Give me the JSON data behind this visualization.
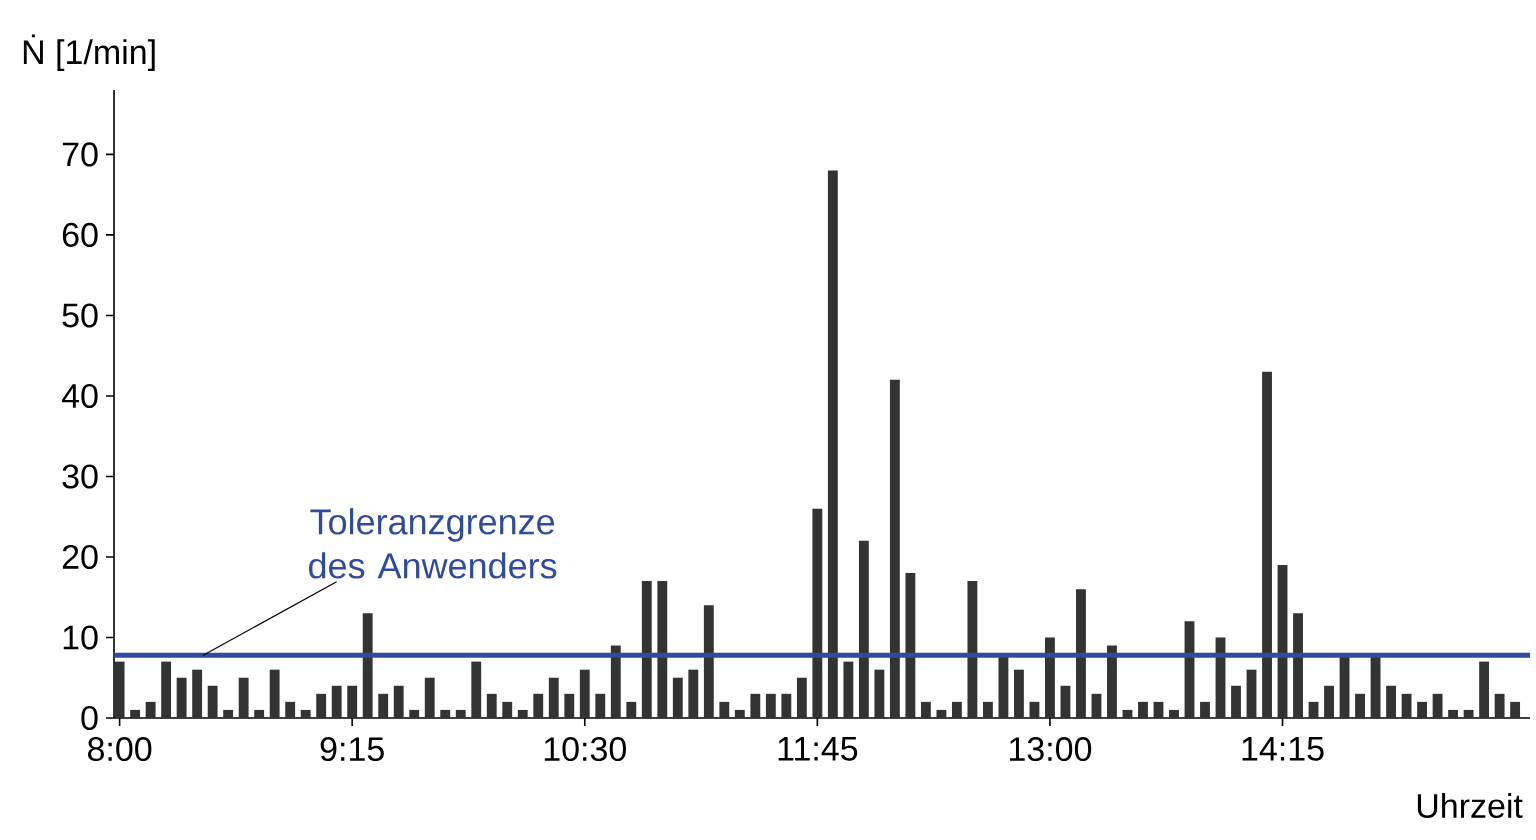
{
  "chart_data": {
    "type": "bar",
    "ylabel": "Ṅ [1/min]",
    "xlabel": "Uhrzeit",
    "x": [
      8,
      8.0833,
      8.1667,
      8.25,
      8.3333,
      8.4167,
      8.5,
      8.5833,
      8.6667,
      8.75,
      8.8333,
      8.9167,
      9,
      9.0833,
      9.1667,
      9.25,
      9.3333,
      9.4167,
      9.5,
      9.5833,
      9.6667,
      9.75,
      9.8333,
      9.9167,
      10,
      10.0833,
      10.1667,
      10.25,
      10.3333,
      10.4167,
      10.5,
      10.5833,
      10.6667,
      10.75,
      10.8333,
      10.9167,
      11,
      11.0833,
      11.1667,
      11.25,
      11.3333,
      11.4167,
      11.5,
      11.5833,
      11.6667,
      11.75,
      11.8333,
      11.9167,
      12,
      12.0833,
      12.1667,
      12.25,
      12.3333,
      12.4167,
      12.5,
      12.5833,
      12.6667,
      12.75,
      12.8333,
      12.9167,
      13,
      13.0833,
      13.1667,
      13.25,
      13.3333,
      13.4167,
      13.5,
      13.5833,
      13.6667,
      13.75,
      13.8333,
      13.9167,
      14,
      14.0833,
      14.1667,
      14.25,
      14.3333,
      14.4167,
      14.5,
      14.5833,
      14.6667,
      14.75,
      14.8333,
      14.9167,
      15,
      15.0833,
      15.1667,
      15.25,
      15.3333,
      15.4167,
      15.5
    ],
    "values": [
      7,
      1,
      2,
      7,
      5,
      6,
      4,
      1,
      5,
      1,
      6,
      2,
      1,
      3,
      4,
      4,
      13,
      3,
      4,
      1,
      5,
      1,
      1,
      7,
      3,
      2,
      1,
      3,
      5,
      3,
      6,
      3,
      9,
      2,
      17,
      17,
      5,
      6,
      14,
      2,
      1,
      3,
      3,
      3,
      5,
      26,
      68,
      7,
      22,
      6,
      42,
      18,
      2,
      1,
      2,
      17,
      2,
      8,
      6,
      2,
      10,
      4,
      16,
      3,
      9,
      1,
      2,
      2,
      1,
      12,
      2,
      10,
      4,
      6,
      43,
      19,
      13,
      2,
      4,
      8,
      3,
      8,
      4,
      3,
      2,
      3,
      1,
      1,
      7,
      3,
      2
    ],
    "color": "#333333",
    "xlim": [
      7.97,
      15.58
    ],
    "ylim": [
      0,
      78
    ],
    "xticks": [
      {
        "value": 8,
        "label": "8:00"
      },
      {
        "value": 9.25,
        "label": "9:15"
      },
      {
        "value": 10.5,
        "label": "10:30"
      },
      {
        "value": 11.75,
        "label": "11:45"
      },
      {
        "value": 13,
        "label": "13:00"
      },
      {
        "value": 14.25,
        "label": "14:15"
      }
    ],
    "yticks": [
      0,
      10,
      20,
      30,
      40,
      50,
      60,
      70
    ],
    "ref_lines": [
      {
        "axis": "y",
        "value": 7.8,
        "label": "Toleranzgrenze des Anwenders",
        "color": "#2e4b9f"
      }
    ]
  }
}
